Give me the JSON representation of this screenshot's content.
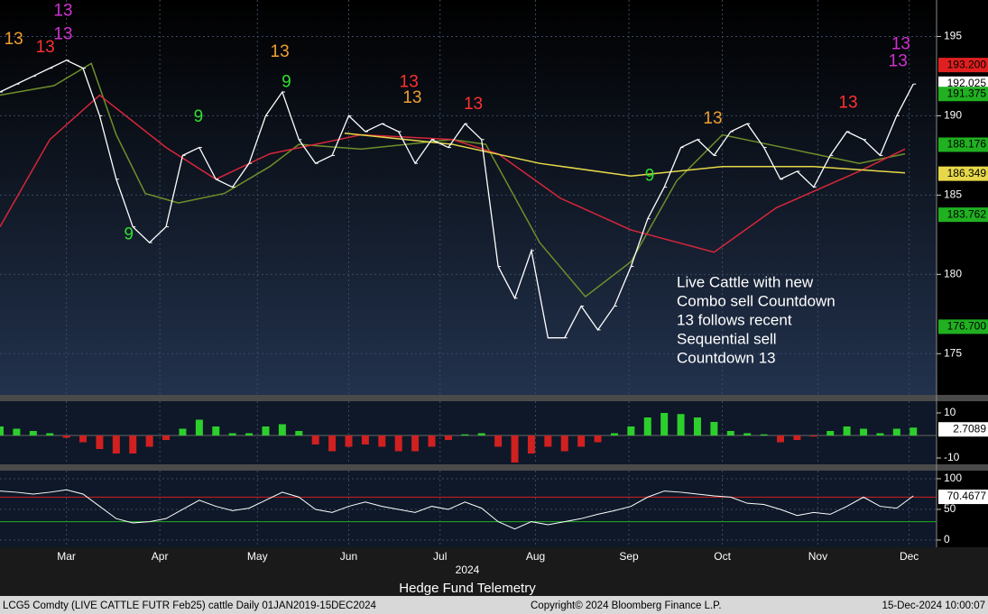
{
  "chart_data": [
    {
      "type": "line",
      "ylim": [
        172.4,
        197.3
      ],
      "yticks": [
        175,
        180,
        185,
        190,
        195
      ],
      "xlim": [
        0,
        225.6
      ],
      "xticks": [
        {
          "value": 16,
          "label": "Mar"
        },
        {
          "value": 38.5,
          "label": "Apr"
        },
        {
          "value": 62,
          "label": "May"
        },
        {
          "value": 84,
          "label": "Jun"
        },
        {
          "value": 106,
          "label": "Jul"
        },
        {
          "value": 129,
          "label": "Aug"
        },
        {
          "value": 151.5,
          "label": "Sep"
        },
        {
          "value": 174,
          "label": "Oct"
        },
        {
          "value": 197,
          "label": "Nov"
        },
        {
          "value": 219,
          "label": "Dec"
        }
      ],
      "year_label": "2024",
      "x": [
        0,
        4,
        8,
        12,
        16,
        20,
        24,
        28,
        32,
        36,
        40,
        44,
        48,
        52,
        56,
        60,
        64,
        68,
        72,
        76,
        80,
        84,
        88,
        92,
        96,
        100,
        104,
        108,
        112,
        116,
        120,
        124,
        128,
        132,
        136,
        140,
        144,
        148,
        152,
        156,
        160,
        164,
        168,
        172,
        176,
        180,
        184,
        188,
        192,
        196,
        200,
        204,
        208,
        212,
        216,
        220
      ],
      "price": {
        "color": "#ffffff",
        "values": [
          191.5,
          192,
          192.5,
          193,
          193.5,
          193,
          190,
          186,
          183,
          182,
          183,
          187.5,
          188,
          186,
          185.5,
          187,
          190,
          191.5,
          188.5,
          187,
          187.5,
          190,
          189,
          189.5,
          189,
          187,
          188.5,
          188,
          189.5,
          188.5,
          180.5,
          178.5,
          181.5,
          176,
          176,
          178,
          176.5,
          178,
          180.5,
          183.5,
          185.5,
          188,
          188.5,
          187.5,
          189,
          189.5,
          188,
          186,
          186.5,
          185.5,
          187.5,
          189,
          188.5,
          187.5,
          190,
          192
        ]
      },
      "moving_averages": [
        {
          "color": "#6f8f2a",
          "x": [
            0,
            13,
            22,
            28,
            35,
            43,
            54,
            65,
            72,
            87,
            109,
            117,
            130,
            141,
            152,
            163,
            174,
            185,
            196,
            207,
            218
          ],
          "values": [
            191.3,
            191.9,
            193.3,
            188.8,
            185.1,
            184.5,
            185.1,
            186.8,
            188.2,
            187.9,
            188.5,
            188.2,
            182,
            178.6,
            180.8,
            185.9,
            188.8,
            188.2,
            187.6,
            187,
            187.6
          ]
        },
        {
          "color": "#d8263a",
          "x": [
            0,
            12,
            24,
            40,
            52,
            65,
            87,
            109,
            120,
            135,
            152,
            172,
            187,
            207,
            218
          ],
          "values": [
            183,
            188.5,
            191.3,
            188,
            186,
            187.6,
            188.8,
            188.5,
            187.6,
            184.8,
            182.8,
            181.4,
            184.2,
            186.5,
            187.9
          ]
        },
        {
          "color": "#e6d84a",
          "x": [
            83,
            109,
            130,
            152,
            174,
            196,
            218
          ],
          "values": [
            188.9,
            188.2,
            187,
            186.2,
            186.8,
            186.8,
            186.4
          ]
        }
      ],
      "markers": [
        {
          "text": "13",
          "x": 3.3,
          "y": 194.8,
          "color": "#f0a030"
        },
        {
          "text": "13",
          "x": 10.9,
          "y": 194.3,
          "color": "#ff3030"
        },
        {
          "text": "13",
          "x": 15.2,
          "y": 196.6,
          "color": "#d030d0"
        },
        {
          "text": "13",
          "x": 15.2,
          "y": 195.1,
          "color": "#d030d0"
        },
        {
          "text": "9",
          "x": 31,
          "y": 182.5,
          "color": "#30e030"
        },
        {
          "text": "9",
          "x": 47.8,
          "y": 189.9,
          "color": "#30e030"
        },
        {
          "text": "13",
          "x": 67.4,
          "y": 194,
          "color": "#f0a030"
        },
        {
          "text": "9",
          "x": 69,
          "y": 192.1,
          "color": "#30e030"
        },
        {
          "text": "13",
          "x": 98.5,
          "y": 192.1,
          "color": "#ff3030"
        },
        {
          "text": "13",
          "x": 99.3,
          "y": 191.1,
          "color": "#f0a030"
        },
        {
          "text": "13",
          "x": 114,
          "y": 190.7,
          "color": "#ff3030"
        },
        {
          "text": "9",
          "x": 156.5,
          "y": 186.2,
          "color": "#30e030"
        },
        {
          "text": "13",
          "x": 171.7,
          "y": 189.8,
          "color": "#f0a030"
        },
        {
          "text": "13",
          "x": 204.3,
          "y": 190.8,
          "color": "#ff3030"
        },
        {
          "text": "13",
          "x": 216.3,
          "y": 193.4,
          "color": "#d030d0"
        },
        {
          "text": "13",
          "x": 217,
          "y": 194.5,
          "color": "#d030d0"
        }
      ],
      "annotation": [
        "Live Cattle with new",
        "Combo sell Countdown",
        "13 follows recent",
        "Sequential sell",
        "Countdown 13"
      ],
      "price_labels": [
        {
          "value": 193.2,
          "label": "193.200",
          "color": "#e02020"
        },
        {
          "value": 192.025,
          "label": "192.025",
          "color": "#ffffff"
        },
        {
          "value": 191.375,
          "label": "191.375",
          "color": "#20b020"
        },
        {
          "value": 188.176,
          "label": "188.176",
          "color": "#20b020"
        },
        {
          "value": 186.349,
          "label": "186.349",
          "color": "#e6d84a"
        },
        {
          "value": 183.762,
          "label": "183.762",
          "color": "#20b020"
        },
        {
          "value": 176.7,
          "label": "176.700",
          "color": "#20b020"
        }
      ]
    },
    {
      "type": "bar",
      "ylim": [
        -12.8,
        15.2
      ],
      "yticks": [
        10,
        -10
      ],
      "pos_color": "#2ccf2c",
      "neg_color": "#d02020",
      "values": [
        4,
        3,
        2,
        1,
        -1,
        -3,
        -6,
        -8,
        -8,
        -5,
        -2,
        3,
        7,
        4,
        1,
        1,
        4,
        5,
        2,
        -4,
        -7,
        -5,
        -4,
        -5,
        -7,
        -7,
        -5,
        -2,
        0.5,
        1,
        -5,
        -12,
        -8,
        -5,
        -7,
        -5,
        -3,
        1,
        4,
        8,
        10,
        9.5,
        8,
        6,
        2,
        1,
        0.5,
        -3,
        -2,
        -0.5,
        2,
        4,
        3,
        1,
        3,
        3.5
      ],
      "price_labels": [
        {
          "value": 2.7089,
          "label": "2.7089",
          "color": "#ffffff"
        }
      ]
    },
    {
      "type": "line",
      "ylim": [
        -11.8,
        113.2
      ],
      "yticks": [
        100,
        50,
        0
      ],
      "color": "#ffffff",
      "hlines": [
        {
          "value": 70,
          "color": "#d02020"
        },
        {
          "value": 30,
          "color": "#20b020"
        }
      ],
      "values": [
        80,
        78,
        75,
        78,
        82,
        75,
        55,
        35,
        28,
        30,
        35,
        50,
        65,
        55,
        48,
        52,
        65,
        78,
        70,
        50,
        45,
        55,
        62,
        55,
        50,
        45,
        55,
        50,
        62,
        52,
        30,
        18,
        30,
        25,
        30,
        35,
        42,
        48,
        55,
        70,
        80,
        78,
        75,
        72,
        70,
        60,
        58,
        50,
        40,
        45,
        42,
        55,
        70,
        55,
        52,
        72
      ],
      "price_labels": [
        {
          "value": 70.4677,
          "label": "70.4677",
          "color": "#ffffff"
        }
      ]
    }
  ],
  "footer": {
    "title": "Hedge Fund Telemetry",
    "security": "LCG5 Comdty (LIVE CATTLE FUTR  Feb25) cattle  Daily 01JAN2019-15DEC2024",
    "copyright": "Copyright© 2024 Bloomberg Finance L.P.",
    "timestamp": "15-Dec-2024 10:00:07"
  }
}
